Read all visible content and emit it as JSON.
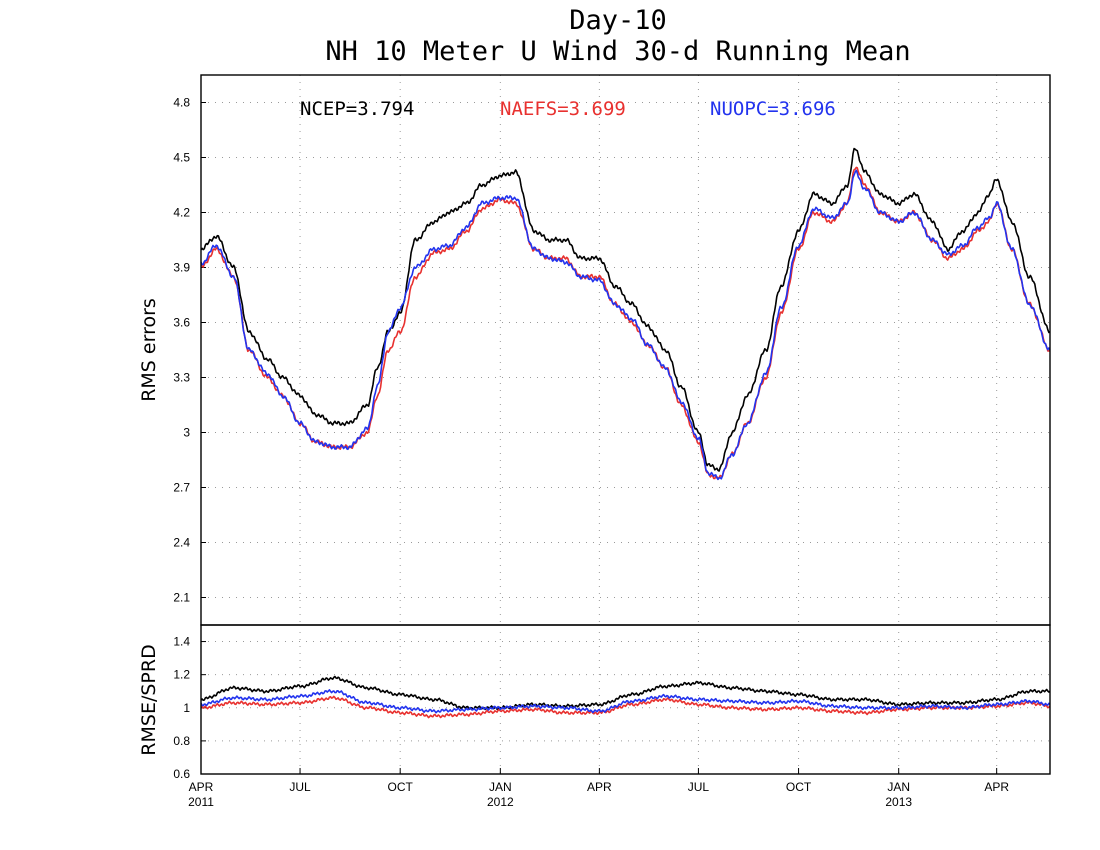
{
  "title_line1": "Day-10",
  "title_line2": "NH 10 Meter U Wind 30-d Running Mean",
  "colors": {
    "NCEP": "#000000",
    "NAEFS": "#e8312f",
    "NUOPC": "#2233ee"
  },
  "x_ticks": [
    {
      "day": 0,
      "label": "APR",
      "year": "2011"
    },
    {
      "day": 91,
      "label": "JUL",
      "year": ""
    },
    {
      "day": 183,
      "label": "OCT",
      "year": ""
    },
    {
      "day": 275,
      "label": "JAN",
      "year": "2012"
    },
    {
      "day": 366,
      "label": "APR",
      "year": ""
    },
    {
      "day": 457,
      "label": "JUL",
      "year": ""
    },
    {
      "day": 549,
      "label": "OCT",
      "year": ""
    },
    {
      "day": 641,
      "label": "JAN",
      "year": "2013"
    },
    {
      "day": 731,
      "label": "APR",
      "year": ""
    }
  ],
  "chart_data": [
    {
      "type": "line",
      "title": "Day-10 NH 10 Meter U Wind 30-d Running Mean",
      "ylabel": "RMS errors",
      "ylim": [
        1.95,
        4.95
      ],
      "x_range": [
        "2011-04-01",
        "2013-05-20"
      ],
      "y_ticks": [
        "2.1",
        "2.4",
        "2.7",
        "3",
        "3.3",
        "3.6",
        "3.9",
        "4.2",
        "4.5",
        "4.8"
      ],
      "grid": true,
      "legend": [
        {
          "name": "NCEP",
          "text": "NCEP=3.794"
        },
        {
          "name": "NAEFS",
          "text": "NAEFS=3.699"
        },
        {
          "name": "NUOPC",
          "text": "NUOPC=3.696"
        }
      ],
      "x_dates": [
        "2011-04-01",
        "2011-04-15",
        "2011-05-01",
        "2011-05-15",
        "2011-06-01",
        "2011-06-15",
        "2011-07-01",
        "2011-07-15",
        "2011-08-01",
        "2011-08-15",
        "2011-09-01",
        "2011-09-10",
        "2011-09-20",
        "2011-10-01",
        "2011-10-15",
        "2011-11-01",
        "2011-11-15",
        "2011-12-01",
        "2011-12-15",
        "2012-01-01",
        "2012-01-15",
        "2012-02-01",
        "2012-02-15",
        "2012-03-01",
        "2012-03-15",
        "2012-04-01",
        "2012-04-15",
        "2012-05-01",
        "2012-05-15",
        "2012-06-01",
        "2012-06-15",
        "2012-07-01",
        "2012-07-10",
        "2012-07-20",
        "2012-08-01",
        "2012-08-15",
        "2012-09-01",
        "2012-09-15",
        "2012-10-01",
        "2012-10-15",
        "2012-11-01",
        "2012-11-15",
        "2012-11-22",
        "2012-12-01",
        "2012-12-15",
        "2013-01-01",
        "2013-01-15",
        "2013-02-01",
        "2013-02-15",
        "2013-03-01",
        "2013-03-15",
        "2013-03-25",
        "2013-04-01",
        "2013-04-15",
        "2013-05-01",
        "2013-05-20"
      ],
      "series": [
        {
          "name": "NCEP",
          "values": [
            4.0,
            4.07,
            3.9,
            3.55,
            3.4,
            3.3,
            3.2,
            3.1,
            3.05,
            3.05,
            3.15,
            3.35,
            3.55,
            3.65,
            4.05,
            4.15,
            4.2,
            4.25,
            4.35,
            4.4,
            4.42,
            4.1,
            4.05,
            4.05,
            3.95,
            3.95,
            3.8,
            3.7,
            3.58,
            3.45,
            3.25,
            3.0,
            2.82,
            2.8,
            3.0,
            3.2,
            3.45,
            3.8,
            4.1,
            4.3,
            4.25,
            4.35,
            4.55,
            4.42,
            4.3,
            4.25,
            4.3,
            4.15,
            4.0,
            4.1,
            4.2,
            4.3,
            4.38,
            4.15,
            3.85,
            3.55
          ]
        },
        {
          "name": "NAEFS",
          "values": [
            3.9,
            4.0,
            3.85,
            3.45,
            3.3,
            3.2,
            3.05,
            2.95,
            2.92,
            2.92,
            3.0,
            3.2,
            3.45,
            3.55,
            3.85,
            3.98,
            4.0,
            4.1,
            4.22,
            4.27,
            4.25,
            4.0,
            3.95,
            3.95,
            3.85,
            3.85,
            3.7,
            3.6,
            3.48,
            3.35,
            3.15,
            2.95,
            2.77,
            2.75,
            2.88,
            3.05,
            3.3,
            3.65,
            4.0,
            4.2,
            4.15,
            4.25,
            4.45,
            4.35,
            4.2,
            4.15,
            4.2,
            4.05,
            3.95,
            4.0,
            4.1,
            4.15,
            4.25,
            4.0,
            3.7,
            3.45
          ]
        },
        {
          "name": "NUOPC",
          "values": [
            3.92,
            4.02,
            3.85,
            3.45,
            3.32,
            3.2,
            3.05,
            2.95,
            2.92,
            2.92,
            3.02,
            3.25,
            3.55,
            3.68,
            3.9,
            4.0,
            4.02,
            4.12,
            4.25,
            4.28,
            4.28,
            4.0,
            3.95,
            3.93,
            3.85,
            3.83,
            3.7,
            3.62,
            3.48,
            3.35,
            3.17,
            2.97,
            2.78,
            2.75,
            2.88,
            3.05,
            3.32,
            3.68,
            4.02,
            4.22,
            4.17,
            4.25,
            4.42,
            4.33,
            4.2,
            4.15,
            4.2,
            4.05,
            3.97,
            4.02,
            4.12,
            4.17,
            4.25,
            4.0,
            3.7,
            3.45
          ]
        }
      ]
    },
    {
      "type": "line",
      "ylabel": "RMSE/SPRD",
      "ylim": [
        0.6,
        1.5
      ],
      "x_range": [
        "2011-04-01",
        "2013-05-20"
      ],
      "y_ticks": [
        "0.6",
        "0.8",
        "1",
        "1.2",
        "1.4"
      ],
      "grid": true,
      "x_dates": [
        "2011-04-01",
        "2011-05-01",
        "2011-06-01",
        "2011-07-01",
        "2011-08-01",
        "2011-09-01",
        "2011-10-01",
        "2011-11-01",
        "2011-12-01",
        "2012-01-01",
        "2012-02-01",
        "2012-03-01",
        "2012-04-01",
        "2012-05-01",
        "2012-06-01",
        "2012-07-01",
        "2012-08-01",
        "2012-09-01",
        "2012-10-01",
        "2012-11-01",
        "2012-12-01",
        "2013-01-01",
        "2013-02-01",
        "2013-03-01",
        "2013-04-01",
        "2013-05-01",
        "2013-05-20"
      ],
      "series": [
        {
          "name": "NCEP",
          "values": [
            1.05,
            1.12,
            1.1,
            1.13,
            1.18,
            1.12,
            1.08,
            1.05,
            1.0,
            1.0,
            1.02,
            1.01,
            1.02,
            1.08,
            1.13,
            1.15,
            1.12,
            1.1,
            1.08,
            1.05,
            1.05,
            1.02,
            1.03,
            1.03,
            1.05,
            1.1,
            1.1
          ]
        },
        {
          "name": "NAEFS",
          "values": [
            1.0,
            1.03,
            1.02,
            1.03,
            1.06,
            1.0,
            0.97,
            0.95,
            0.96,
            0.98,
            0.99,
            0.97,
            0.97,
            1.02,
            1.05,
            1.02,
            1.0,
            0.99,
            1.0,
            0.98,
            0.97,
            0.99,
            1.0,
            1.0,
            1.01,
            1.03,
            1.01
          ]
        },
        {
          "name": "NUOPC",
          "values": [
            1.02,
            1.06,
            1.05,
            1.07,
            1.1,
            1.03,
            1.0,
            0.98,
            0.99,
            1.0,
            1.01,
            1.0,
            0.98,
            1.04,
            1.07,
            1.05,
            1.04,
            1.03,
            1.04,
            1.01,
            1.0,
            1.0,
            1.01,
            1.0,
            1.02,
            1.04,
            1.02
          ]
        }
      ]
    }
  ]
}
